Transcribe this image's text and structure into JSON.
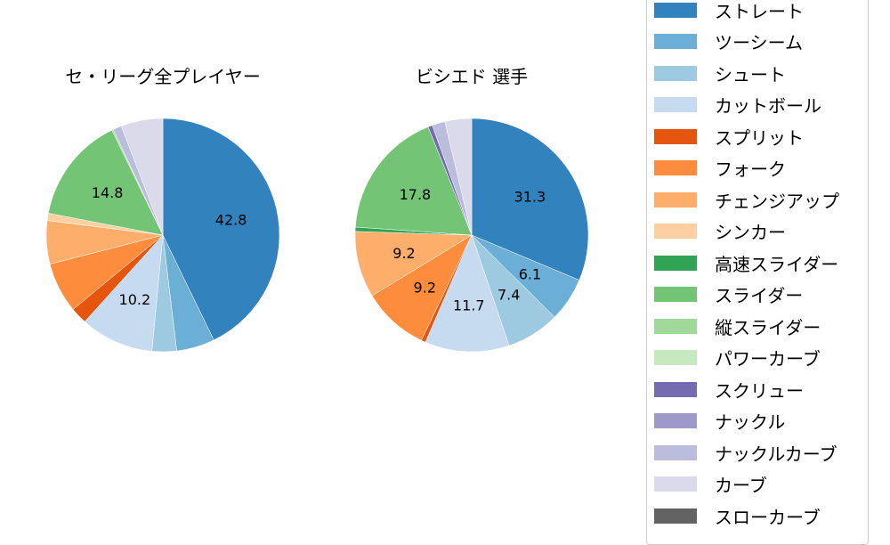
{
  "chart_data": [
    {
      "type": "pie",
      "title": "セ・リーグ全プレイヤー",
      "categories": [
        "ストレート",
        "ツーシーム",
        "シュート",
        "カットボール",
        "スプリット",
        "フォーク",
        "チェンジアップ",
        "シンカー",
        "スライダー",
        "縦スライダー",
        "ナックルカーブ",
        "カーブ"
      ],
      "values": [
        42.8,
        5.3,
        3.4,
        10.2,
        2.3,
        7.0,
        6.0,
        1.0,
        14.8,
        0.2,
        1.2,
        5.8
      ],
      "labels_shown": [
        "42.8",
        "10.2",
        "14.8"
      ],
      "start_angle": 90,
      "direction": "clockwise"
    },
    {
      "type": "pie",
      "title": "ビシエド  選手",
      "categories": [
        "ストレート",
        "ツーシーム",
        "シュート",
        "カットボール",
        "スプリット",
        "フォーク",
        "チェンジアップ",
        "高速スライダー",
        "スライダー",
        "スクリュー",
        "ナックルカーブ",
        "カーブ"
      ],
      "values": [
        31.3,
        6.1,
        7.4,
        11.7,
        0.6,
        9.2,
        9.2,
        0.6,
        17.8,
        0.6,
        1.8,
        3.7
      ],
      "labels_shown": [
        "31.3",
        "6.1",
        "7.4",
        "11.7",
        "9.2",
        "9.2",
        "17.8"
      ],
      "start_angle": 90,
      "direction": "clockwise"
    }
  ],
  "titles": {
    "left": "セ・リーグ全プレイヤー",
    "right": "ビシエド  選手"
  },
  "legend": [
    {
      "label": "ストレート",
      "color": "#3182bd"
    },
    {
      "label": "ツーシーム",
      "color": "#6baed6"
    },
    {
      "label": "シュート",
      "color": "#9ecae1"
    },
    {
      "label": "カットボール",
      "color": "#c6dbef"
    },
    {
      "label": "スプリット",
      "color": "#e6550d"
    },
    {
      "label": "フォーク",
      "color": "#fd8d3c"
    },
    {
      "label": "チェンジアップ",
      "color": "#fdae6b"
    },
    {
      "label": "シンカー",
      "color": "#fdd0a2"
    },
    {
      "label": "高速スライダー",
      "color": "#31a354"
    },
    {
      "label": "スライダー",
      "color": "#74c476"
    },
    {
      "label": "縦スライダー",
      "color": "#a1d99b"
    },
    {
      "label": "パワーカーブ",
      "color": "#c7e9c0"
    },
    {
      "label": "スクリュー",
      "color": "#756bb1"
    },
    {
      "label": "ナックル",
      "color": "#9e9ac8"
    },
    {
      "label": "ナックルカーブ",
      "color": "#bcbddc"
    },
    {
      "label": "カーブ",
      "color": "#dadaeb"
    },
    {
      "label": "スローカーブ",
      "color": "#636363"
    }
  ]
}
